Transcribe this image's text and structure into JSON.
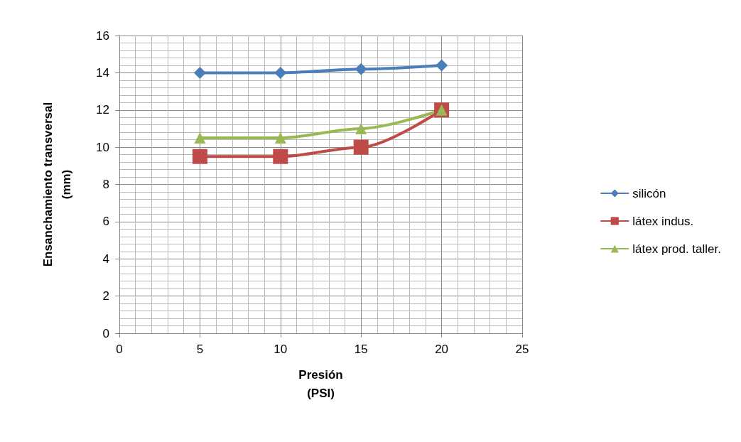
{
  "chart_data": {
    "type": "line",
    "xlabel": "Presión\n(PSI)",
    "ylabel": "Ensanchamiento transversal\n(mm)",
    "x": [
      5,
      10,
      15,
      20
    ],
    "series": [
      {
        "name": "silicón",
        "color": "#4a7ebb",
        "marker": "diamond",
        "values": [
          14,
          14,
          14.2,
          14.4
        ]
      },
      {
        "name": "látex indus.",
        "color": "#be4b48",
        "marker": "square",
        "values": [
          9.5,
          9.5,
          10,
          12
        ]
      },
      {
        "name": "látex prod. taller.",
        "color": "#98b954",
        "marker": "triangle",
        "values": [
          10.5,
          10.5,
          11,
          12
        ]
      }
    ],
    "xlim": [
      0,
      25
    ],
    "xticks": [
      0,
      5,
      10,
      15,
      20,
      25
    ],
    "ylim": [
      0,
      16
    ],
    "yticks": [
      0,
      2,
      4,
      6,
      8,
      10,
      12,
      14,
      16
    ],
    "grid": true,
    "legend": "right",
    "line_style": "solid"
  }
}
